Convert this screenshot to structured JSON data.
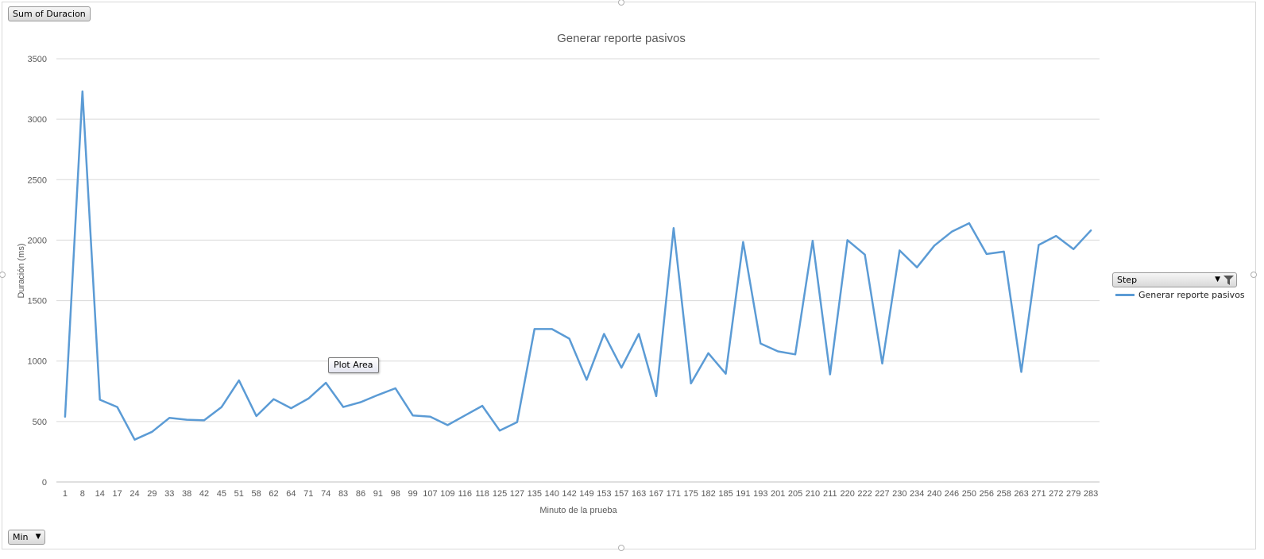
{
  "buttons": {
    "sum_field": "Sum of Duracion",
    "min_field": "Min",
    "step_field": "Step"
  },
  "tooltip": "Plot Area",
  "colors": {
    "series": "#5b9bd5",
    "grid": "#d9d9d9",
    "axis_text": "#595959"
  },
  "chart_data": {
    "type": "line",
    "title": "Generar reporte pasivos",
    "xlabel": "Minuto de la prueba",
    "ylabel": "Duración (ms)",
    "ylim": [
      0,
      3500
    ],
    "yticks": [
      0,
      500,
      1000,
      1500,
      2000,
      2500,
      3000,
      3500
    ],
    "grid": true,
    "legend_position": "right",
    "categories": [
      "1",
      "8",
      "14",
      "17",
      "24",
      "29",
      "33",
      "38",
      "42",
      "45",
      "51",
      "58",
      "62",
      "64",
      "71",
      "74",
      "83",
      "86",
      "91",
      "98",
      "99",
      "107",
      "109",
      "116",
      "118",
      "125",
      "127",
      "135",
      "140",
      "142",
      "149",
      "153",
      "157",
      "163",
      "167",
      "171",
      "175",
      "182",
      "185",
      "191",
      "193",
      "201",
      "205",
      "210",
      "211",
      "220",
      "222",
      "227",
      "230",
      "234",
      "240",
      "246",
      "250",
      "256",
      "258",
      "263",
      "271",
      "272",
      "279",
      "283"
    ],
    "series": [
      {
        "name": "Generar reporte pasivos",
        "values": [
          540,
          3230,
          680,
          620,
          350,
          415,
          530,
          515,
          510,
          620,
          840,
          545,
          685,
          610,
          690,
          820,
          620,
          660,
          720,
          775,
          550,
          540,
          470,
          550,
          630,
          425,
          495,
          1265,
          1265,
          1185,
          845,
          1225,
          945,
          1225,
          710,
          2100,
          815,
          1065,
          895,
          1985,
          1145,
          1080,
          1055,
          1995,
          890,
          2000,
          1880,
          980,
          1915,
          1775,
          1955,
          2070,
          2140,
          1885,
          1905,
          910,
          1960,
          2035,
          1925,
          2080
        ]
      }
    ]
  }
}
